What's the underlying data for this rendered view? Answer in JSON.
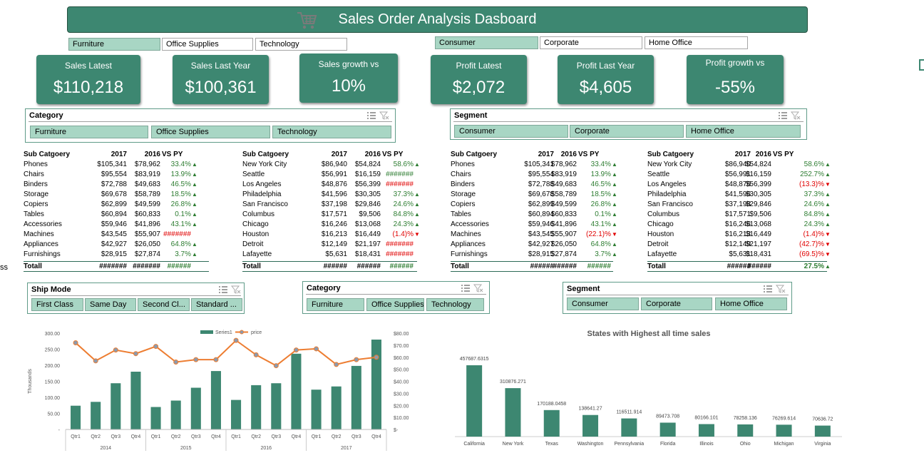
{
  "title": "Sales Order Analysis Dasboard",
  "category_filters": [
    "Furniture",
    "Office Supplies",
    "Technology"
  ],
  "segment_filters": [
    "Consumer",
    "Corporate",
    "Home Office"
  ],
  "kpis": [
    {
      "label": "Sales Latest",
      "value": "$110,218"
    },
    {
      "label": "Sales Last Year",
      "value": "$100,361"
    },
    {
      "label": "Sales growth vs",
      "value": "10%"
    },
    {
      "label": "Profit Latest",
      "value": "$2,072"
    },
    {
      "label": "Profit Last Year",
      "value": "$4,605"
    },
    {
      "label": "Profit growth vs",
      "value": "-55%"
    }
  ],
  "slicers": {
    "category1": {
      "header": "Category",
      "items": [
        "Furniture",
        "Office Supplies",
        "Technology"
      ]
    },
    "segment1": {
      "header": "Segment",
      "items": [
        "Consumer",
        "Corporate",
        "Home Office"
      ]
    },
    "shipmode": {
      "header": "Ship Mode",
      "items": [
        "First Class",
        "Same Day",
        "Second Cl...",
        "Standard ..."
      ]
    },
    "category2": {
      "header": "Category",
      "items": [
        "Furniture",
        "Office Supplies",
        "Technology"
      ]
    },
    "segment2": {
      "header": "Segment",
      "items": [
        "Consumer",
        "Corporate",
        "Home Office"
      ]
    }
  },
  "side_label": "ss",
  "tables": [
    {
      "headers": [
        "Sub Catgoery",
        "2017",
        "2016",
        "VS PY"
      ],
      "rows": [
        [
          "Phones",
          "$105,341",
          "$78,962",
          "33.4%",
          "up"
        ],
        [
          "Chairs",
          "$95,554",
          "$83,919",
          "13.9%",
          "up"
        ],
        [
          "Binders",
          "$72,788",
          "$49,683",
          "46.5%",
          "up"
        ],
        [
          "Storage",
          "$69,678",
          "$58,789",
          "18.5%",
          "up"
        ],
        [
          "Copiers",
          "$62,899",
          "$49,599",
          "26.8%",
          "up"
        ],
        [
          "Tables",
          "$60,894",
          "$60,833",
          "0.1%",
          "up"
        ],
        [
          "Accessories",
          "$59,946",
          "$41,896",
          "43.1%",
          "up"
        ],
        [
          "Machines",
          "$43,545",
          "$55,907",
          "#######",
          "neg"
        ],
        [
          "Appliances",
          "$42,927",
          "$26,050",
          "64.8%",
          "up"
        ],
        [
          "Furnishings",
          "$28,915",
          "$27,874",
          "3.7%",
          "up"
        ]
      ],
      "total": [
        "Totall",
        "#######",
        "#######",
        "######"
      ]
    },
    {
      "headers": [
        "Sub Catgoery",
        "2017",
        "2016",
        "VS PY"
      ],
      "rows": [
        [
          "New York City",
          "$86,940",
          "$54,824",
          "58.6%",
          "up"
        ],
        [
          "Seattle",
          "$56,991",
          "$16,159",
          "#######",
          "pos"
        ],
        [
          "Los Angeles",
          "$48,876",
          "$56,399",
          "#######",
          "neg"
        ],
        [
          "Philadelphia",
          "$41,596",
          "$30,305",
          "37.3%",
          "up"
        ],
        [
          "San Francisco",
          "$37,198",
          "$29,846",
          "24.6%",
          "up"
        ],
        [
          "Columbus",
          "$17,571",
          "$9,506",
          "84.8%",
          "up"
        ],
        [
          "Chicago",
          "$16,246",
          "$13,068",
          "24.3%",
          "up"
        ],
        [
          "Houston",
          "$16,213",
          "$16,449",
          "(1.4)%",
          "down"
        ],
        [
          "Detroit",
          "$12,149",
          "$21,197",
          "#######",
          "neg"
        ],
        [
          "Lafayette",
          "$5,631",
          "$18,431",
          "#######",
          "neg"
        ]
      ],
      "total": [
        "Totall",
        "######",
        "######",
        "######"
      ]
    },
    {
      "headers": [
        "Sub Catgoery",
        "2017",
        "2016",
        "VS PY"
      ],
      "rows": [
        [
          "Phones",
          "$105,341",
          "$78,962",
          "33.4%",
          "up"
        ],
        [
          "Chairs",
          "$95,554",
          "$83,919",
          "13.9%",
          "up"
        ],
        [
          "Binders",
          "$72,788",
          "$49,683",
          "46.5%",
          "up"
        ],
        [
          "Storage",
          "$69,678",
          "$58,789",
          "18.5%",
          "up"
        ],
        [
          "Copiers",
          "$62,899",
          "$49,599",
          "26.8%",
          "up"
        ],
        [
          "Tables",
          "$60,894",
          "$60,833",
          "0.1%",
          "up"
        ],
        [
          "Accessories",
          "$59,946",
          "$41,896",
          "43.1%",
          "up"
        ],
        [
          "Machines",
          "$43,545",
          "$55,907",
          "(22.1)%",
          "down"
        ],
        [
          "Appliances",
          "$42,927",
          "$26,050",
          "64.8%",
          "up"
        ],
        [
          "Furnishings",
          "$28,915",
          "$27,874",
          "3.7%",
          "up"
        ]
      ],
      "total": [
        "Totall",
        "######",
        "######",
        "######"
      ]
    },
    {
      "headers": [
        "Sub Catgoery",
        "2017",
        "2016",
        "VS PY"
      ],
      "rows": [
        [
          "New York City",
          "$86,940",
          "$54,824",
          "58.6%",
          "up"
        ],
        [
          "Seattle",
          "$56,991",
          "$16,159",
          "252.7%",
          "up"
        ],
        [
          "Los Angeles",
          "$48,876",
          "$56,399",
          "(13.3)%",
          "down"
        ],
        [
          "Philadelphia",
          "$41,596",
          "$30,305",
          "37.3%",
          "up"
        ],
        [
          "San Francisco",
          "$37,198",
          "$29,846",
          "24.6%",
          "up"
        ],
        [
          "Columbus",
          "$17,571",
          "$9,506",
          "84.8%",
          "up"
        ],
        [
          "Chicago",
          "$16,246",
          "$13,068",
          "24.3%",
          "up"
        ],
        [
          "Houston",
          "$16,213",
          "$16,449",
          "(1.4)%",
          "down"
        ],
        [
          "Detroit",
          "$12,149",
          "$21,197",
          "(42.7)%",
          "down"
        ],
        [
          "Lafayette",
          "$5,631",
          "$18,431",
          "(69.5)%",
          "down"
        ]
      ],
      "total": [
        "Totall",
        "######",
        "######",
        "27.5%",
        "up"
      ]
    }
  ],
  "chart_data": [
    {
      "type": "bar",
      "title": "",
      "ylabel": "Thousands",
      "ylim": [
        0,
        300
      ],
      "y2lim": [
        0,
        80
      ],
      "yticks": [
        "-",
        "50.00",
        "100.00",
        "150.00",
        "200.00",
        "250.00",
        "300.00"
      ],
      "y2ticks": [
        "$-",
        "$10.00",
        "$20.00",
        "$30.00",
        "$40.00",
        "$50.00",
        "$60.00",
        "$70.00",
        "$80.00"
      ],
      "legend": [
        "Series1",
        "price"
      ],
      "legend_position": "top-center",
      "categories": [
        "Qtr1",
        "Qtr2",
        "Qtr3",
        "Qtr4",
        "Qtr1",
        "Qtr2",
        "Qtr3",
        "Qtr4",
        "Qtr1",
        "Qtr2",
        "Qtr3",
        "Qtr4",
        "Qtr1",
        "Qtr2",
        "Qtr3",
        "Qtr4"
      ],
      "groups": [
        "2014",
        "2015",
        "2016",
        "2017"
      ],
      "series": [
        {
          "name": "Series1",
          "type": "bar",
          "axis": "left",
          "values": [
            74,
            86,
            144,
            180,
            70,
            90,
            130,
            182,
            92,
            138,
            144,
            236,
            124,
            134,
            198,
            280
          ]
        },
        {
          "name": "price",
          "type": "line",
          "axis": "right",
          "values": [
            72,
            57,
            66,
            63,
            69,
            56,
            58,
            58,
            74,
            62,
            53,
            66,
            67,
            54,
            58,
            60
          ]
        }
      ]
    },
    {
      "type": "bar",
      "title": "States with Highest all time sales",
      "categories": [
        "California",
        "New York",
        "Texas",
        "Washington",
        "Pennsylvania",
        "Florida",
        "Illinois",
        "Ohio",
        "Michigan",
        "Virginia"
      ],
      "values": [
        457687.6315,
        310876.271,
        170188.0458,
        138641.27,
        116511.914,
        89473.708,
        80166.101,
        78258.136,
        76269.614,
        70636.72
      ],
      "data_labels": [
        "457687.6315",
        "310876.271",
        "170188.0458",
        "138641.27",
        "116511.914",
        "89473.708",
        "80166.101",
        "78258.136",
        "76269.614",
        "70636.72"
      ]
    }
  ],
  "colors": {
    "accent": "#3d8771",
    "selected": "#a8d6c4",
    "line": "#ed7d31",
    "bar": "#3d8771"
  }
}
